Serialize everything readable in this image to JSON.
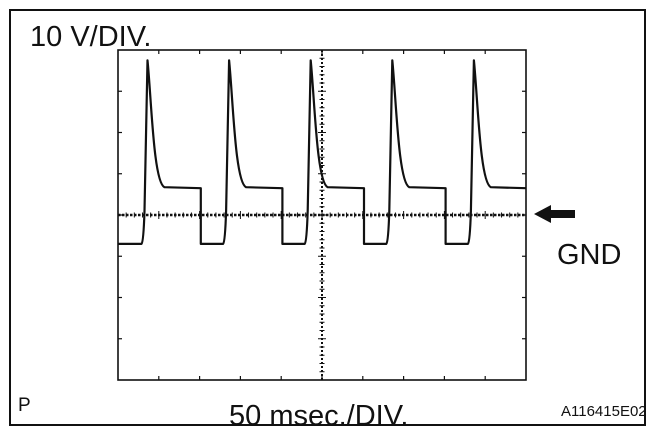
{
  "figure": {
    "vertical_scale": "10 V/DIV.",
    "horizontal_scale": "50 msec./DIV.",
    "ground_label": "GND",
    "corner_mark": "P",
    "figure_code": "A116415E02"
  },
  "waveform": {
    "divisions_x": 10,
    "divisions_y": 8,
    "ground_division_from_top": 4,
    "pulse_period_div": 2,
    "pulse_count": 5,
    "low_level_div": -0.7,
    "spike_peak_div": 3.75,
    "plateau_level_div": 0.65,
    "trace_color": "#111111"
  }
}
